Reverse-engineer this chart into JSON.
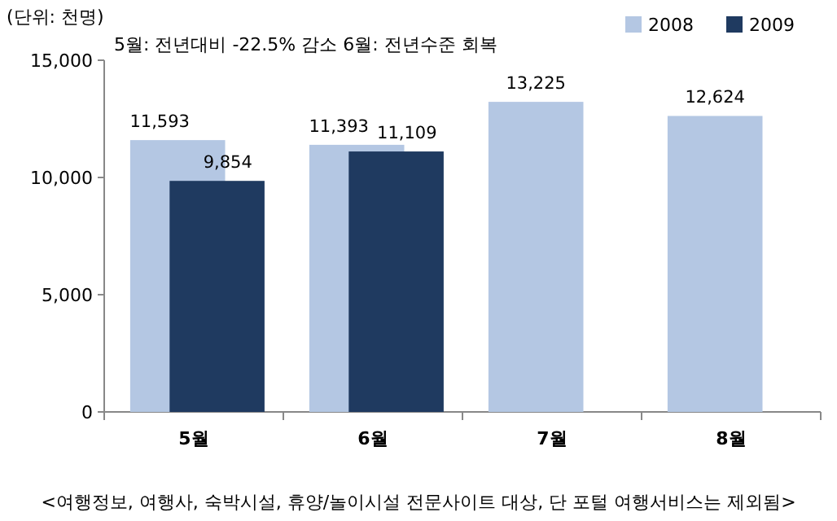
{
  "chart_data": {
    "type": "bar",
    "ylabel": "(단위: 천명)",
    "subtitle": "5월: 전년대비 -22.5% 감소 6월: 전년수준 회복",
    "categories": [
      "5월",
      "6월",
      "7월",
      "8월"
    ],
    "series": [
      {
        "name": "2008",
        "color": "#b4c7e3",
        "values": [
          11593,
          11393,
          13225,
          12624
        ],
        "value_labels": [
          "11,593",
          "11,393",
          "13,225",
          "12,624"
        ]
      },
      {
        "name": "2009",
        "color": "#1f3a60",
        "values": [
          9854,
          11109,
          null,
          null
        ],
        "value_labels": [
          "9,854",
          "11,109",
          null,
          null
        ]
      }
    ],
    "ylim": [
      0,
      15000
    ],
    "yticks": [
      0,
      {
        "value": 5000,
        "label": "5,000"
      },
      {
        "value": 10000,
        "label": "10,000"
      },
      {
        "value": 15000,
        "label": "15,000"
      }
    ],
    "legend": "top right",
    "annotations": [
      "<여행정보, 여행사, 숙박시설, 휴양/놀이시설 전문사이트 대상, 단  포털 여행서비스는 제외됨>"
    ]
  }
}
